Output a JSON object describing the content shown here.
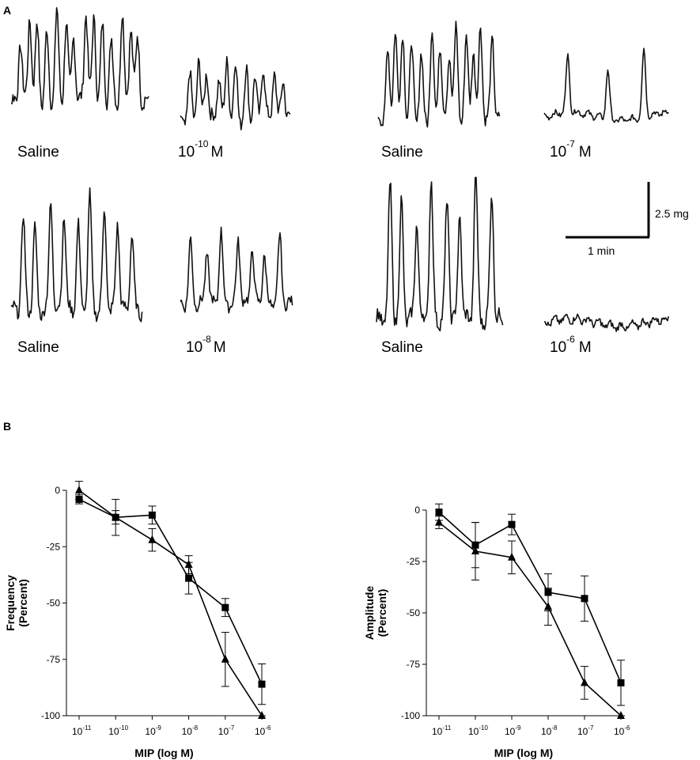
{
  "panel_a": {
    "letter": "A",
    "traces": [
      {
        "label": "Saline",
        "conc": null
      },
      {
        "label": "10",
        "conc": "-10",
        "unit": "M"
      },
      {
        "label": "Saline",
        "conc": null
      },
      {
        "label": "10",
        "conc": "-7",
        "unit": "M"
      },
      {
        "label": "Saline",
        "conc": null
      },
      {
        "label": "10",
        "conc": "-8",
        "unit": "M"
      },
      {
        "label": "Saline",
        "conc": null
      },
      {
        "label": "10",
        "conc": "-6",
        "unit": "M"
      }
    ],
    "scale_bar": {
      "vertical_label": "2.5 mg",
      "horizontal_label": "1 min"
    }
  },
  "panel_b": {
    "letter": "B"
  },
  "chart_data": [
    {
      "type": "line",
      "title": "",
      "xlabel": "MIP (log M)",
      "ylabel_line1": "Frequency",
      "ylabel_line2": "(Percent)",
      "x_scale": "log",
      "x": [
        "10^-11",
        "10^-10",
        "10^-9",
        "10^-8",
        "10^-7",
        "10^-6"
      ],
      "x_tick_base": "10",
      "x_tick_exps": [
        "-11",
        "-10",
        "-9",
        "-8",
        "-7",
        "-6"
      ],
      "ylim": [
        -100,
        0
      ],
      "y_ticks": [
        0,
        -25,
        -50,
        -75,
        -100
      ],
      "y_tick_labels": [
        "0",
        "-25",
        "-50",
        "-75",
        "-100"
      ],
      "series": [
        {
          "marker": "square",
          "values": [
            -4,
            -12,
            -11,
            -39,
            -52,
            -86
          ],
          "errors": [
            2,
            8,
            4,
            7,
            4,
            9
          ]
        },
        {
          "marker": "triangle",
          "values": [
            0,
            -12,
            -22,
            -33,
            -75,
            -100
          ],
          "errors": [
            4,
            3,
            5,
            4,
            12,
            0
          ]
        }
      ]
    },
    {
      "type": "line",
      "title": "",
      "xlabel": "MIP (log M)",
      "ylabel_line1": "Amplitude",
      "ylabel_line2": "(Percent)",
      "x_scale": "log",
      "x": [
        "10^-11",
        "10^-10",
        "10^-9",
        "10^-8",
        "10^-7",
        "10^-6"
      ],
      "x_tick_base": "10",
      "x_tick_exps": [
        "-11",
        "-10",
        "-9",
        "-8",
        "-7",
        "-6"
      ],
      "ylim": [
        -100,
        0
      ],
      "y_ticks": [
        0,
        -25,
        -50,
        -75,
        -100
      ],
      "y_tick_labels": [
        "0",
        "-25",
        "-50",
        "-75",
        "-100"
      ],
      "series": [
        {
          "marker": "square",
          "values": [
            -1,
            -17,
            -7,
            -40,
            -43,
            -84
          ],
          "errors": [
            4,
            11,
            5,
            9,
            11,
            11
          ]
        },
        {
          "marker": "triangle",
          "values": [
            -6,
            -20,
            -23,
            -47,
            -84,
            -100
          ],
          "errors": [
            3,
            14,
            8,
            9,
            8,
            0
          ]
        }
      ]
    }
  ]
}
